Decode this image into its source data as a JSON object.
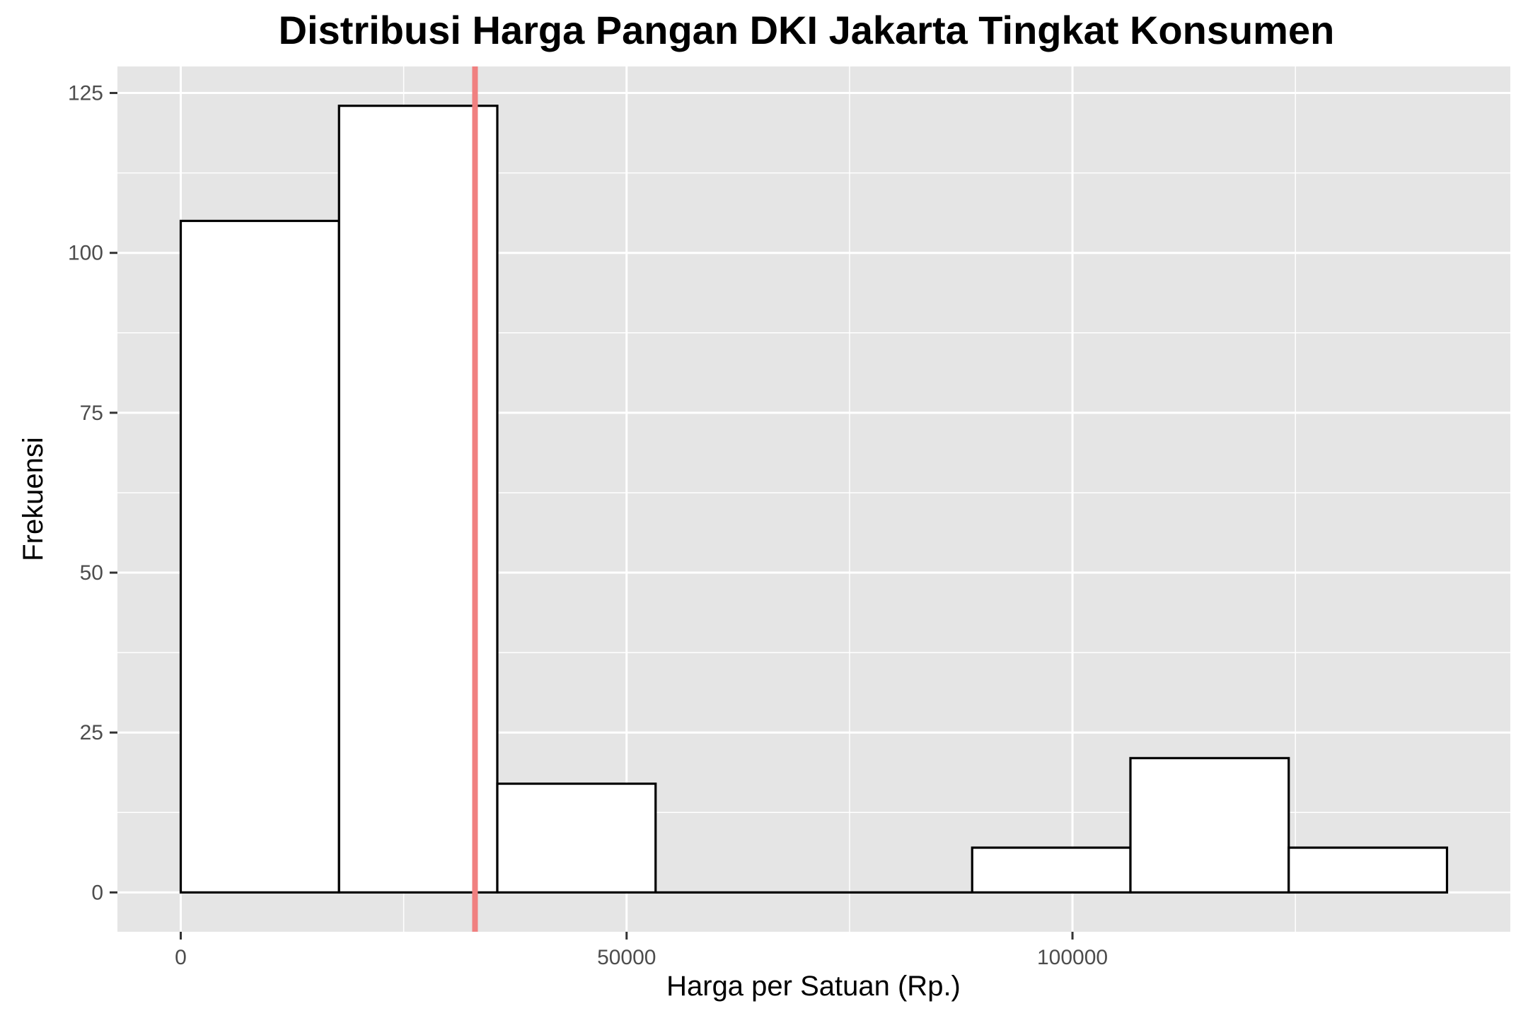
{
  "chart_data": {
    "type": "bar",
    "title": "Distribusi Harga Pangan DKI Jakarta Tingkat Konsumen",
    "xlabel": "Harga per Satuan (Rp.)",
    "ylabel": "Frekuensi",
    "bins": [
      {
        "x_start": 0,
        "x_end": 17750,
        "count": 105
      },
      {
        "x_start": 17750,
        "x_end": 35500,
        "count": 123
      },
      {
        "x_start": 35500,
        "x_end": 53250,
        "count": 17
      },
      {
        "x_start": 53250,
        "x_end": 71000,
        "count": 0
      },
      {
        "x_start": 71000,
        "x_end": 88750,
        "count": 0
      },
      {
        "x_start": 88750,
        "x_end": 106500,
        "count": 7
      },
      {
        "x_start": 106500,
        "x_end": 124250,
        "count": 21
      },
      {
        "x_start": 124250,
        "x_end": 142000,
        "count": 7
      }
    ],
    "reference_line": {
      "x": 33000,
      "color": "#f08080"
    },
    "xlim": [
      -7100,
      149100
    ],
    "ylim": [
      -6.15,
      129.15
    ],
    "x_ticks": [
      0,
      50000,
      100000
    ],
    "x_tick_labels": [
      "0",
      "50000",
      "100000"
    ],
    "y_ticks": [
      0,
      25,
      50,
      75,
      100,
      125
    ],
    "y_tick_labels": [
      "0",
      "25",
      "50",
      "75",
      "100",
      "125"
    ],
    "x_minor_ticks": [
      25000,
      75000,
      125000
    ],
    "y_minor_ticks": [
      12.5,
      37.5,
      62.5,
      87.5,
      112.5
    ],
    "grid": true,
    "panel_color": "#e5e5e5",
    "grid_color": "#ffffff",
    "bar_fill": "#ffffff",
    "bar_outline": "#000000"
  }
}
